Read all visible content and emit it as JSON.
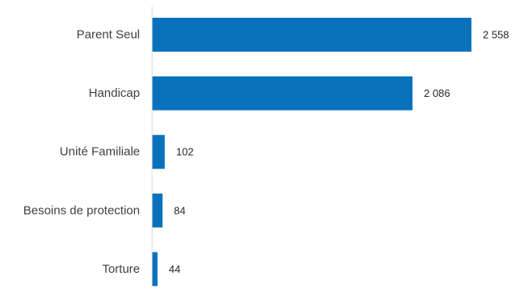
{
  "chart_data": {
    "type": "bar",
    "orientation": "horizontal",
    "categories": [
      "Parent Seul",
      "Handicap",
      "Unité Familiale",
      "Besoins de protection",
      "Torture"
    ],
    "values": [
      2558,
      2086,
      102,
      84,
      44
    ],
    "value_labels": [
      "2 558",
      "2 086",
      "102",
      "84",
      "44"
    ],
    "title": "",
    "xlabel": "",
    "ylabel": "",
    "xlim": [
      0,
      2558
    ],
    "grid": false,
    "legend": "none",
    "bar_color": "#0a72bd"
  }
}
